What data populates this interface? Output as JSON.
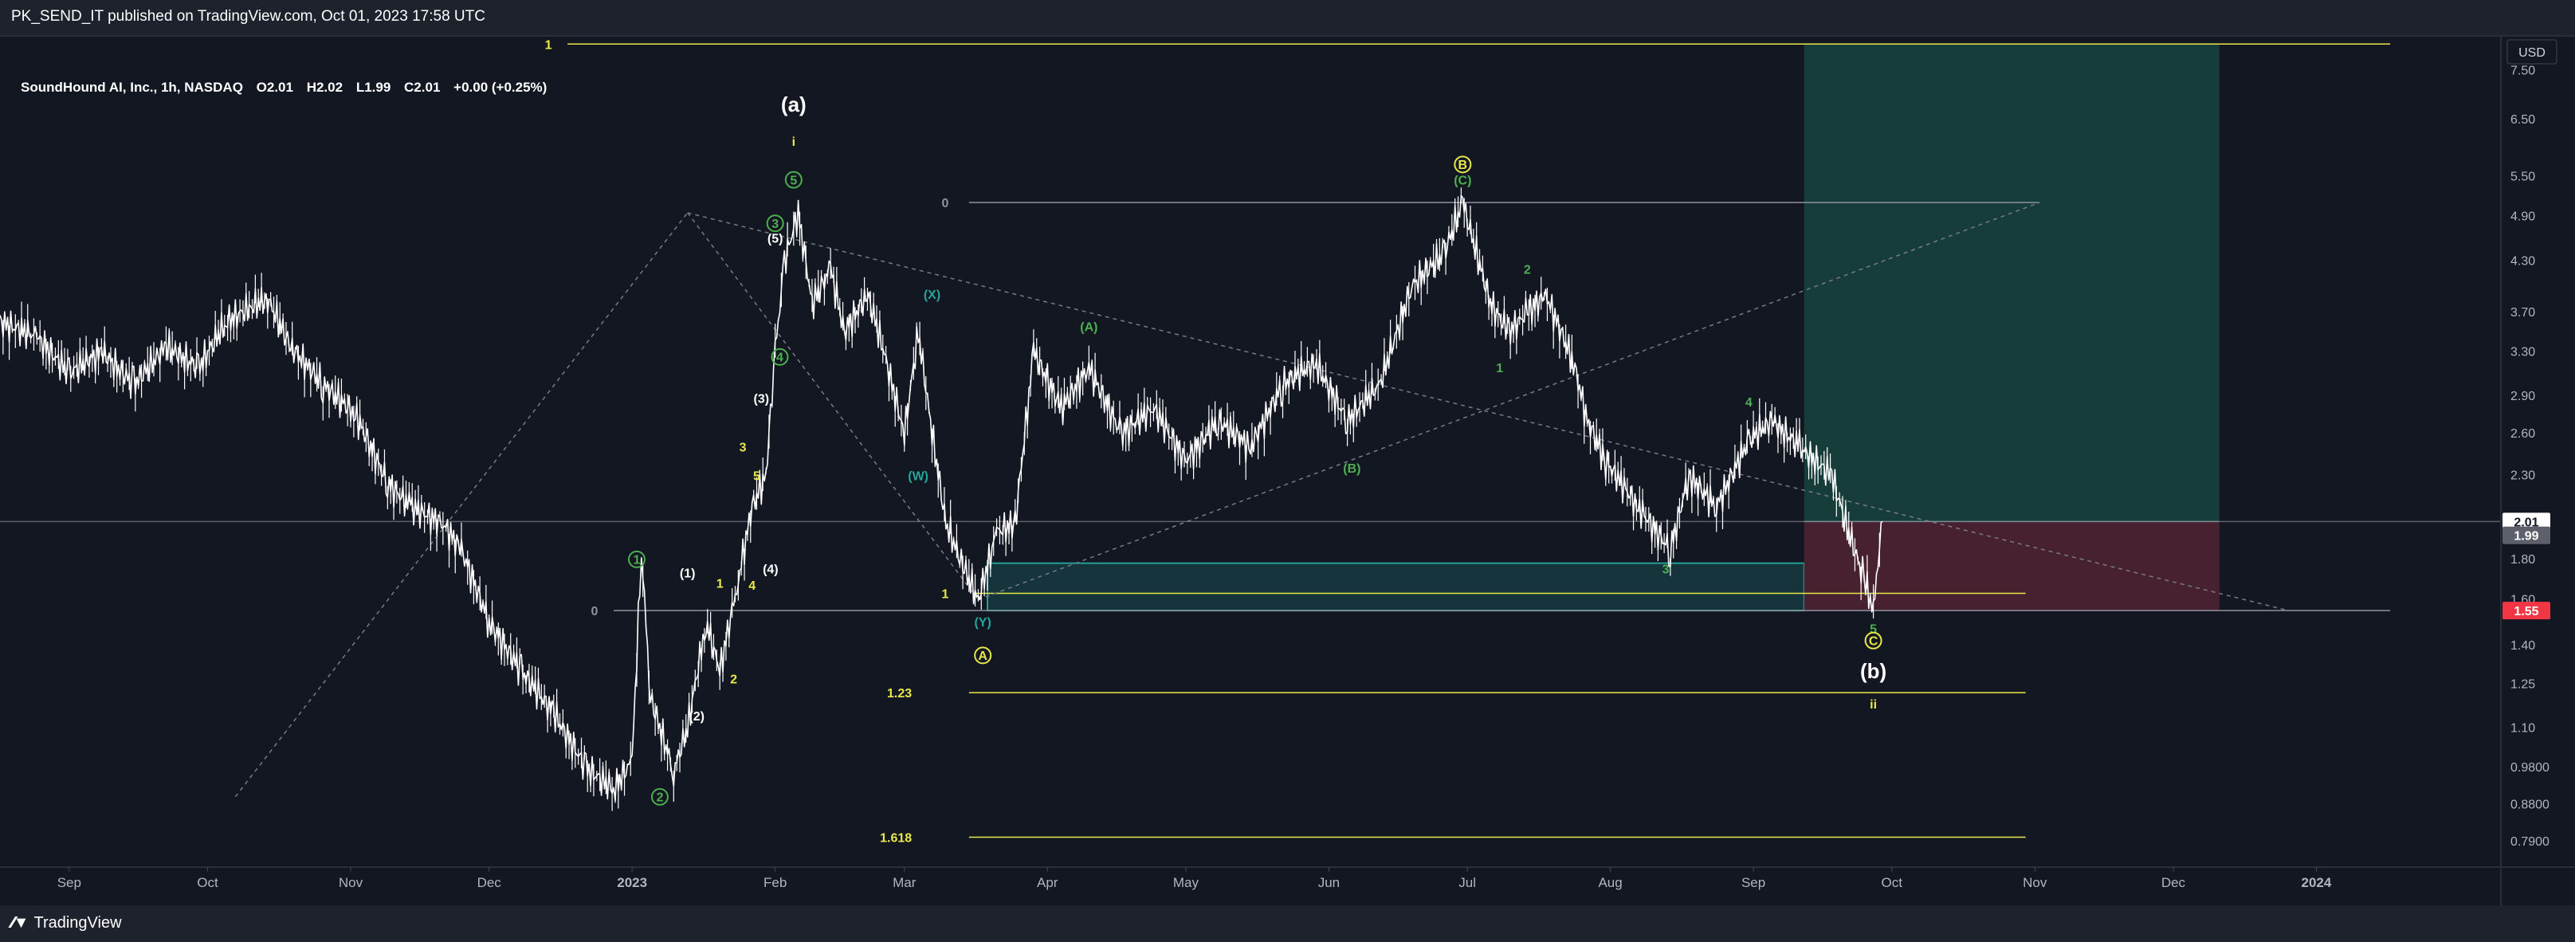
{
  "header": {
    "publish_text": "PK_SEND_IT published on TradingView.com, Oct 01, 2023 17:58 UTC"
  },
  "legend": {
    "symbol": "SoundHound AI, Inc., 1h, NASDAQ",
    "open": "O2.01",
    "high": "H2.02",
    "low": "L1.99",
    "close": "C2.01",
    "change": "+0.00 (+0.25%)"
  },
  "footer": {
    "brand": "TradingView"
  },
  "colors": {
    "background": "#131722",
    "grid": "#2a2e39",
    "price_line": "#ffffff",
    "fib_line": "#e8e84a",
    "green_label": "#4caf50",
    "teal_label": "#26a69a",
    "profit_zone": "#173f3d",
    "loss_zone": "#4a2230",
    "current_price_bg": "#ffffff",
    "stop_bg": "#f23645"
  },
  "chart_data": {
    "type": "line",
    "symbol": "SoundHound AI, Inc.",
    "interval": "1h",
    "exchange": "NASDAQ",
    "currency": "USD",
    "y_scale": "log",
    "ylim": [
      0.74,
      8.2
    ],
    "y_ticks": [
      "7.50",
      "6.50",
      "5.50",
      "4.90",
      "4.30",
      "3.70",
      "3.30",
      "2.90",
      "2.60",
      "2.30",
      "1.80",
      "1.60",
      "1.40",
      "1.25",
      "1.10",
      "0.9800",
      "0.8800",
      "0.7900"
    ],
    "x_ticks": [
      "Sep",
      "Oct",
      "Nov",
      "Dec",
      "2023",
      "Feb",
      "Mar",
      "Apr",
      "May",
      "Jun",
      "Jul",
      "Aug",
      "Sep",
      "Oct",
      "Nov",
      "Dec",
      "2024"
    ],
    "xlim": [
      "2022-08-17",
      "2024-02-10"
    ],
    "price_labels": [
      {
        "text": "2.01",
        "value": 2.01,
        "style": "current"
      },
      {
        "text": "1.99",
        "value": 1.99,
        "style": "gray"
      },
      {
        "text": "1.55",
        "value": 1.55,
        "style": "stop"
      }
    ],
    "series": [
      {
        "values": [
          [
            "2022-08-17",
            3.6
          ],
          [
            "2022-08-25",
            3.45
          ],
          [
            "2022-09-01",
            3.1
          ],
          [
            "2022-09-08",
            3.3
          ],
          [
            "2022-09-15",
            3.0
          ],
          [
            "2022-09-22",
            3.35
          ],
          [
            "2022-09-29",
            3.15
          ],
          [
            "2022-10-05",
            3.6
          ],
          [
            "2022-10-10",
            3.75
          ],
          [
            "2022-10-14",
            3.85
          ],
          [
            "2022-10-19",
            3.35
          ],
          [
            "2022-10-26",
            3.0
          ],
          [
            "2022-11-02",
            2.75
          ],
          [
            "2022-11-09",
            2.25
          ],
          [
            "2022-11-14",
            2.1
          ],
          [
            "2022-11-21",
            2.0
          ],
          [
            "2022-11-25",
            1.85
          ],
          [
            "2022-12-01",
            1.5
          ],
          [
            "2022-12-08",
            1.3
          ],
          [
            "2022-12-15",
            1.15
          ],
          [
            "2022-12-22",
            0.98
          ],
          [
            "2022-12-28",
            0.92
          ],
          [
            "2023-01-01",
            1.0
          ],
          [
            "2023-01-03",
            1.85
          ],
          [
            "2023-01-05",
            1.2
          ],
          [
            "2023-01-10",
            0.97
          ],
          [
            "2023-01-13",
            1.1
          ],
          [
            "2023-01-17",
            1.5
          ],
          [
            "2023-01-20",
            1.3
          ],
          [
            "2023-01-24",
            1.7
          ],
          [
            "2023-01-27",
            2.1
          ],
          [
            "2023-01-30",
            2.3
          ],
          [
            "2023-02-01",
            3.3
          ],
          [
            "2023-02-03",
            4.3
          ],
          [
            "2023-02-06",
            4.95
          ],
          [
            "2023-02-09",
            3.8
          ],
          [
            "2023-02-13",
            4.2
          ],
          [
            "2023-02-16",
            3.5
          ],
          [
            "2023-02-21",
            3.9
          ],
          [
            "2023-02-24",
            3.4
          ],
          [
            "2023-03-01",
            2.6
          ],
          [
            "2023-03-04",
            3.5
          ],
          [
            "2023-03-07",
            2.6
          ],
          [
            "2023-03-10",
            2.0
          ],
          [
            "2023-03-14",
            1.75
          ],
          [
            "2023-03-17",
            1.6
          ],
          [
            "2023-03-21",
            1.95
          ],
          [
            "2023-03-25",
            2.0
          ],
          [
            "2023-03-29",
            3.3
          ],
          [
            "2023-04-04",
            2.8
          ],
          [
            "2023-04-10",
            3.15
          ],
          [
            "2023-04-17",
            2.6
          ],
          [
            "2023-04-24",
            2.8
          ],
          [
            "2023-05-01",
            2.4
          ],
          [
            "2023-05-08",
            2.7
          ],
          [
            "2023-05-15",
            2.5
          ],
          [
            "2023-05-22",
            3.0
          ],
          [
            "2023-05-29",
            3.2
          ],
          [
            "2023-06-05",
            2.7
          ],
          [
            "2023-06-12",
            3.0
          ],
          [
            "2023-06-19",
            4.0
          ],
          [
            "2023-06-26",
            4.4
          ],
          [
            "2023-06-30",
            5.1
          ],
          [
            "2023-07-03",
            4.4
          ],
          [
            "2023-07-06",
            3.8
          ],
          [
            "2023-07-10",
            3.5
          ],
          [
            "2023-07-14",
            3.7
          ],
          [
            "2023-07-18",
            3.9
          ],
          [
            "2023-07-24",
            3.2
          ],
          [
            "2023-07-27",
            2.7
          ],
          [
            "2023-07-31",
            2.4
          ],
          [
            "2023-08-07",
            2.1
          ],
          [
            "2023-08-14",
            1.85
          ],
          [
            "2023-08-18",
            2.3
          ],
          [
            "2023-08-24",
            2.1
          ],
          [
            "2023-08-31",
            2.55
          ],
          [
            "2023-09-05",
            2.7
          ],
          [
            "2023-09-11",
            2.5
          ],
          [
            "2023-09-18",
            2.3
          ],
          [
            "2023-09-21",
            2.0
          ],
          [
            "2023-09-25",
            1.7
          ],
          [
            "2023-09-27",
            1.55
          ],
          [
            "2023-09-28",
            1.8
          ],
          [
            "2023-09-29",
            2.01
          ]
        ]
      }
    ],
    "annotations": {
      "trendlines": [
        {
          "from": [
            "2022-10-07",
            0.9
          ],
          "to": [
            "2023-01-13",
            4.95
          ],
          "style": "dashed"
        },
        {
          "from": [
            "2023-01-13",
            4.95
          ],
          "to": [
            "2023-03-17",
            1.6
          ],
          "style": "dashed"
        },
        {
          "from": [
            "2023-03-17",
            1.6
          ],
          "to": [
            "2023-11-02",
            5.1
          ],
          "style": "dashed"
        },
        {
          "from": [
            "2023-01-13",
            4.95
          ],
          "to": [
            "2023-12-26",
            1.55
          ],
          "style": "dashed"
        }
      ],
      "fib_levels": [
        {
          "label": "1",
          "value": 8.1
        },
        {
          "label": "0",
          "value": 5.1
        },
        {
          "label": "0",
          "value": 1.55
        },
        {
          "label": "1",
          "value": 1.63
        },
        {
          "label": "1.23",
          "value": 1.22
        },
        {
          "label": "1.618",
          "value": 0.8
        }
      ],
      "zones": [
        {
          "name": "support-box",
          "from": [
            "2023-03-19",
            1.55
          ],
          "to": [
            "2023-09-12",
            1.78
          ]
        },
        {
          "name": "profit-zone",
          "from": [
            "2023-09-12",
            2.01
          ],
          "to": [
            "2023-12-11",
            8.1
          ]
        },
        {
          "name": "loss-zone",
          "from": [
            "2023-09-12",
            1.55
          ],
          "to": [
            "2023-12-11",
            2.01
          ]
        }
      ],
      "wave_labels": [
        {
          "text": "(a)",
          "at": [
            "2023-02-05",
            6.8
          ],
          "color": "white"
        },
        {
          "text": "i",
          "at": [
            "2023-02-05",
            6.1
          ],
          "color": "yellow"
        },
        {
          "text": "5",
          "at": [
            "2023-02-05",
            5.45
          ],
          "color": "green",
          "circled": true
        },
        {
          "text": "3",
          "at": [
            "2023-02-01",
            4.8
          ],
          "color": "green",
          "circled": true
        },
        {
          "text": "(5)",
          "at": [
            "2023-02-01",
            4.6
          ],
          "color": "white"
        },
        {
          "text": "4",
          "at": [
            "2023-02-02",
            3.25
          ],
          "color": "green",
          "circled": true
        },
        {
          "text": "(3)",
          "at": [
            "2023-01-29",
            2.88
          ],
          "color": "white"
        },
        {
          "text": "3",
          "at": [
            "2023-01-25",
            2.5
          ],
          "color": "yellow"
        },
        {
          "text": "5",
          "at": [
            "2023-01-28",
            2.3
          ],
          "color": "yellow"
        },
        {
          "text": "1",
          "at": [
            "2023-01-02",
            1.8
          ],
          "color": "green",
          "circled": true
        },
        {
          "text": "(1)",
          "at": [
            "2023-01-13",
            1.73
          ],
          "color": "white"
        },
        {
          "text": "1",
          "at": [
            "2023-01-20",
            1.68
          ],
          "color": "yellow"
        },
        {
          "text": "(4)",
          "at": [
            "2023-01-31",
            1.75
          ],
          "color": "white"
        },
        {
          "text": "4",
          "at": [
            "2023-01-27",
            1.67
          ],
          "color": "yellow"
        },
        {
          "text": "2",
          "at": [
            "2023-01-23",
            1.27
          ],
          "color": "yellow"
        },
        {
          "text": "(2)",
          "at": [
            "2023-01-15",
            1.14
          ],
          "color": "white"
        },
        {
          "text": "2",
          "at": [
            "2023-01-07",
            0.9
          ],
          "color": "green",
          "circled": true
        },
        {
          "text": "(X)",
          "at": [
            "2023-03-07",
            3.9
          ],
          "color": "teal"
        },
        {
          "text": "(W)",
          "at": [
            "2023-03-04",
            2.3
          ],
          "color": "teal"
        },
        {
          "text": "(Y)",
          "at": [
            "2023-03-18",
            1.5
          ],
          "color": "teal"
        },
        {
          "text": "A",
          "at": [
            "2023-03-18",
            1.36
          ],
          "color": "yellow",
          "circled": true
        },
        {
          "text": "(A)",
          "at": [
            "2023-04-10",
            3.55
          ],
          "color": "green"
        },
        {
          "text": "(B)",
          "at": [
            "2023-06-06",
            2.35
          ],
          "color": "green"
        },
        {
          "text": "B",
          "at": [
            "2023-06-30",
            5.7
          ],
          "color": "yellow",
          "circled": true
        },
        {
          "text": "(C)",
          "at": [
            "2023-06-30",
            5.45
          ],
          "color": "green"
        },
        {
          "text": "2",
          "at": [
            "2023-07-14",
            4.2
          ],
          "color": "green"
        },
        {
          "text": "1",
          "at": [
            "2023-07-08",
            3.15
          ],
          "color": "green"
        },
        {
          "text": "3",
          "at": [
            "2023-08-13",
            1.75
          ],
          "color": "green"
        },
        {
          "text": "4",
          "at": [
            "2023-08-31",
            2.85
          ],
          "color": "green"
        },
        {
          "text": "5",
          "at": [
            "2023-09-27",
            1.47
          ],
          "color": "green"
        },
        {
          "text": "C",
          "at": [
            "2023-09-27",
            1.42
          ],
          "color": "yellow",
          "circled": true
        },
        {
          "text": "(b)",
          "at": [
            "2023-09-27",
            1.3
          ],
          "color": "white"
        },
        {
          "text": "ii",
          "at": [
            "2023-09-27",
            1.18
          ],
          "color": "yellow"
        }
      ]
    }
  }
}
